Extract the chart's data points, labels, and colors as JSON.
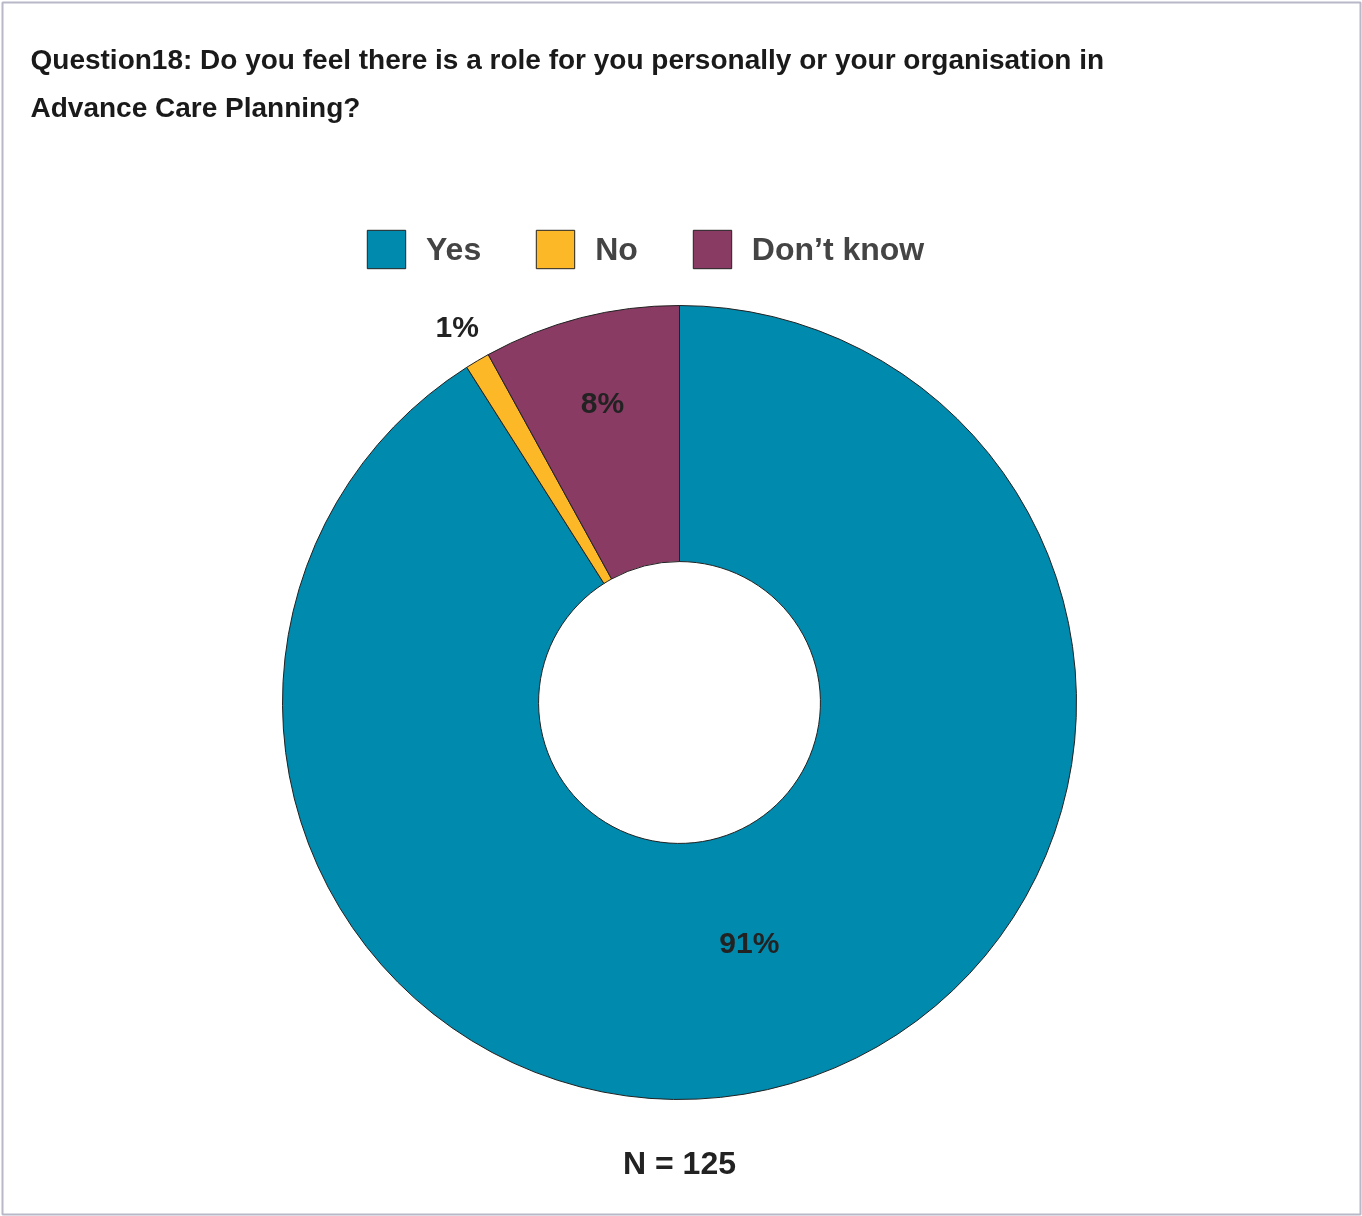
{
  "chart_data": {
    "type": "donut",
    "title": "Question18: Do you feel there is a role for you personally or your organisation in Advance Care Planning?",
    "categories": [
      "Yes",
      "No",
      "Don’t know"
    ],
    "values": [
      91,
      1,
      8
    ],
    "value_labels": [
      "91%",
      "1%",
      "8%"
    ],
    "colors": [
      "#008bae",
      "#fdb827",
      "#8a3b63"
    ],
    "legend": "top",
    "annotations": [
      "N = 125"
    ]
  }
}
